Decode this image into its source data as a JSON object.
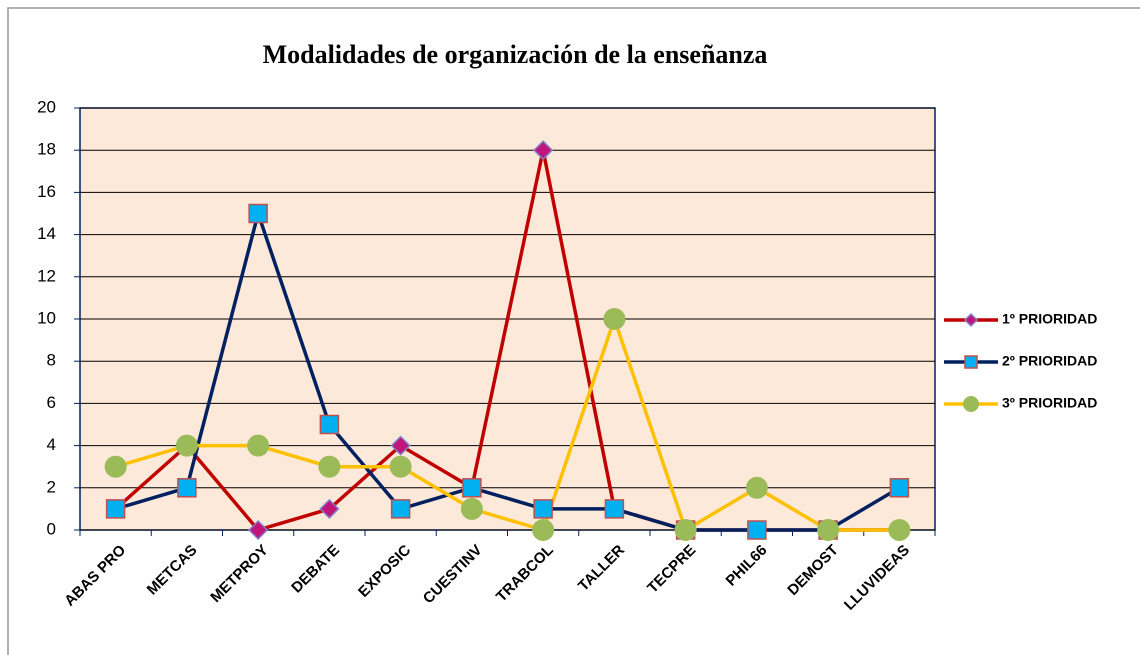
{
  "chart_data": {
    "type": "line",
    "title": "Modalidades de organización de la enseñanza",
    "categories": [
      "ABAS PRO",
      "METCAS",
      "METPROY",
      "DEBATE",
      "EXPOSIC",
      "CUESTINV",
      "TRABCOL",
      "TALLER",
      "TECPRE",
      "PHIL66",
      "DEMOST",
      "LLUVIDEAS"
    ],
    "series": [
      {
        "name": "1º PRIORIDAD",
        "color": "#c00000",
        "marker": "diamond",
        "values": [
          1,
          4,
          0,
          1,
          4,
          2,
          18,
          1,
          0,
          0,
          0,
          0
        ]
      },
      {
        "name": "2º PRIORIDAD",
        "color": "#002060",
        "marker": "square",
        "values": [
          1,
          2,
          15,
          5,
          1,
          2,
          1,
          1,
          0,
          0,
          0,
          2
        ]
      },
      {
        "name": "3º PRIORIDAD",
        "color": "#ffc000",
        "marker": "circle",
        "values": [
          3,
          4,
          4,
          3,
          3,
          1,
          0,
          10,
          0,
          2,
          0,
          0
        ]
      }
    ],
    "ylim": [
      0,
      20
    ],
    "yticks": [
      0,
      2,
      4,
      6,
      8,
      10,
      12,
      14,
      16,
      18,
      20
    ],
    "grid": true,
    "legend": "right"
  }
}
